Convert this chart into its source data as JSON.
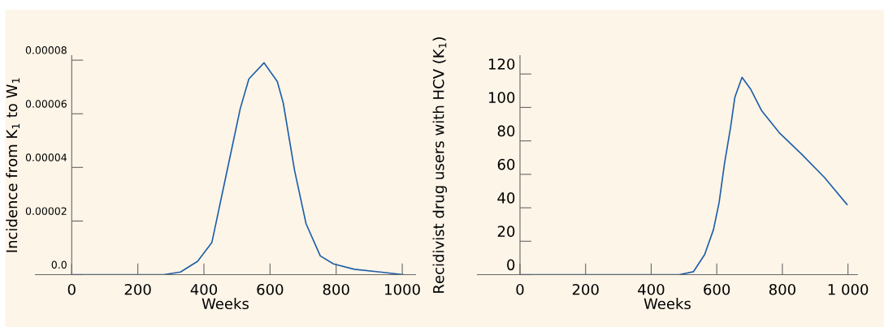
{
  "chart_data": [
    {
      "type": "line",
      "xlabel": "Weeks",
      "ylabel": "Incidence from K$_{1}$ to W$_{1}$",
      "xlim": [
        -110,
        1040
      ],
      "ylim": [
        0,
        8.17e-05
      ],
      "xticks": [
        0,
        200,
        400,
        600,
        800,
        1000
      ],
      "yticks": [
        {
          "value": 0,
          "label": "0.0"
        },
        {
          "value": 2e-05,
          "label": "0.00002"
        },
        {
          "value": 4e-05,
          "label": "0.00004"
        },
        {
          "value": 6e-05,
          "label": "0.00006"
        },
        {
          "value": 8e-05,
          "label": "0.00008"
        }
      ],
      "grid": false,
      "series": [
        {
          "color": "#1f5fa8",
          "x": [
            0,
            278,
            329,
            381,
            424,
            467,
            510,
            536,
            582,
            622,
            640,
            674,
            709,
            752,
            792,
            855,
            933,
            1002
          ],
          "values": [
            0,
            0,
            1e-06,
            5e-06,
            1.2e-05,
            3.7e-05,
            6.2e-05,
            7.3e-05,
            7.9e-05,
            7.2e-05,
            6.4e-05,
            3.9e-05,
            1.9e-05,
            7e-06,
            4e-06,
            2e-06,
            1e-06,
            0
          ]
        }
      ]
    },
    {
      "type": "line",
      "xlabel": "Weeks",
      "ylabel": "Recidivist drug users with HCV (K$_{1}$)",
      "xlim": [
        -130,
        1029
      ],
      "ylim": [
        0,
        131
      ],
      "xticks": [
        0,
        200,
        400,
        600,
        800,
        {
          "value": 1000,
          "label": "1 000"
        }
      ],
      "yticks": [
        0,
        20,
        40,
        60,
        80,
        100,
        120
      ],
      "grid": false,
      "series": [
        {
          "color": "#1f5fa8",
          "x": [
            0,
            485,
            529,
            563,
            590,
            607,
            624,
            642,
            655,
            677,
            703,
            737,
            790,
            859,
            929,
            997
          ],
          "values": [
            0,
            0,
            1.8,
            12,
            27,
            43,
            67,
            88,
            106,
            118,
            111,
            98,
            85,
            72,
            58,
            42
          ]
        }
      ]
    }
  ]
}
